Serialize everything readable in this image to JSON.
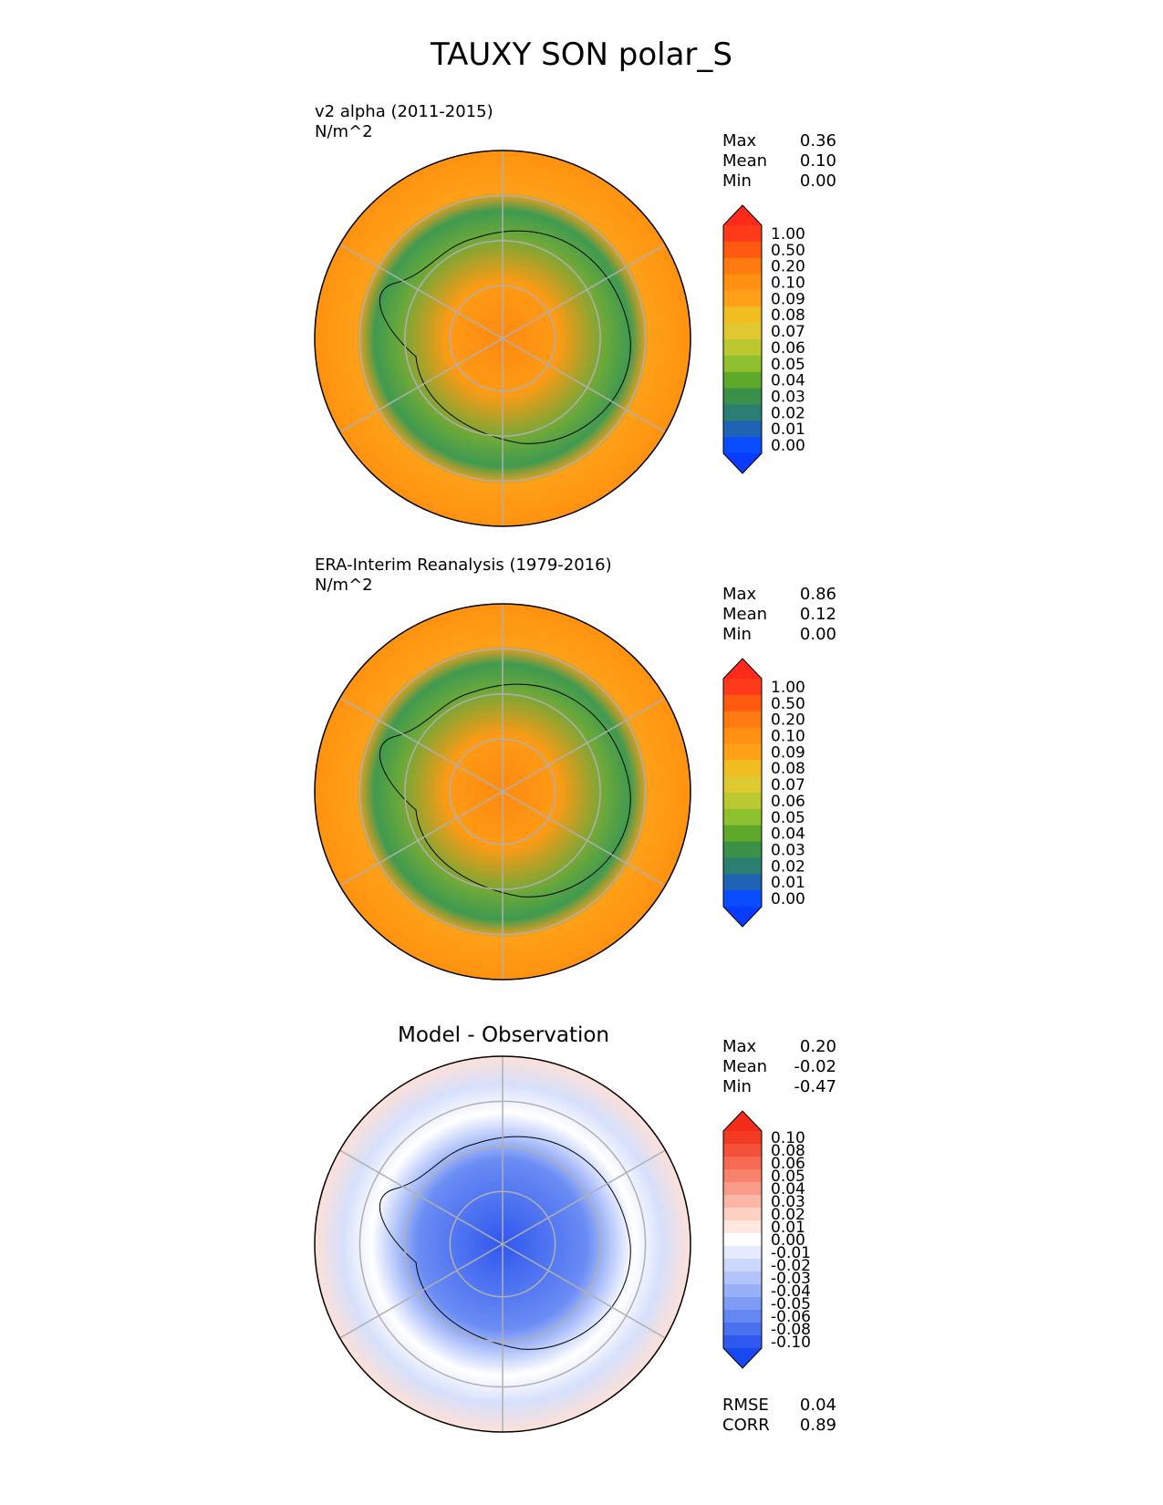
{
  "figure_title": "TAUXY SON polar_S",
  "panels": [
    {
      "title_line1": "v2 alpha (2011-2015)",
      "title_line2": "N/m^2",
      "stats": [
        {
          "label": "Max",
          "value": "0.36"
        },
        {
          "label": "Mean",
          "value": "0.10"
        },
        {
          "label": "Min",
          "value": "0.00"
        }
      ]
    },
    {
      "title_line1": "ERA-Interim Reanalysis (1979-2016)",
      "title_line2": "N/m^2",
      "stats": [
        {
          "label": "Max",
          "value": "0.86"
        },
        {
          "label": "Mean",
          "value": "0.12"
        },
        {
          "label": "Min",
          "value": "0.00"
        }
      ]
    },
    {
      "title_center": "Model - Observation",
      "stats": [
        {
          "label": "Max",
          "value": "0.20"
        },
        {
          "label": "Mean",
          "value": "-0.02"
        },
        {
          "label": "Min",
          "value": "-0.47"
        }
      ],
      "metrics": [
        {
          "label": "RMSE",
          "value": "0.04"
        },
        {
          "label": "CORR",
          "value": "0.89"
        }
      ]
    }
  ],
  "chart_data": [
    {
      "type": "heatmap",
      "projection": "south-polar-stereographic",
      "title": "v2 alpha (2011-2015)",
      "units": "N/m^2",
      "colorbar": {
        "levels": [
          "1.00",
          "0.50",
          "0.20",
          "0.10",
          "0.09",
          "0.08",
          "0.07",
          "0.06",
          "0.05",
          "0.04",
          "0.03",
          "0.02",
          "0.01",
          "0.00"
        ],
        "colors": [
          "#ff3a1a",
          "#ff5a10",
          "#ff7a10",
          "#ff9010",
          "#ffa018",
          "#f0be20",
          "#e0c830",
          "#bcc830",
          "#8ec030",
          "#5ea82a",
          "#3a9048",
          "#2a8070",
          "#1f64b4",
          "#0a4cff"
        ],
        "top_extend_color": "#ff2a1a",
        "bottom_extend_color": "#0a3cff",
        "extend": "both"
      }
    },
    {
      "type": "heatmap",
      "projection": "south-polar-stereographic",
      "title": "ERA-Interim Reanalysis (1979-2016)",
      "units": "N/m^2",
      "colorbar": {
        "levels": [
          "1.00",
          "0.50",
          "0.20",
          "0.10",
          "0.09",
          "0.08",
          "0.07",
          "0.06",
          "0.05",
          "0.04",
          "0.03",
          "0.02",
          "0.01",
          "0.00"
        ],
        "colors": [
          "#ff3a1a",
          "#ff5a10",
          "#ff7a10",
          "#ff9010",
          "#ffa018",
          "#f0be20",
          "#e0c830",
          "#bcc830",
          "#8ec030",
          "#5ea82a",
          "#3a9048",
          "#2a8070",
          "#1f64b4",
          "#0a4cff"
        ],
        "top_extend_color": "#ff2a1a",
        "bottom_extend_color": "#0a3cff",
        "extend": "both"
      }
    },
    {
      "type": "heatmap",
      "projection": "south-polar-stereographic",
      "title": "Model - Observation",
      "colorbar": {
        "levels": [
          "0.10",
          "0.08",
          "0.06",
          "0.05",
          "0.04",
          "0.03",
          "0.02",
          "0.01",
          "0.00",
          "-0.01",
          "-0.02",
          "-0.03",
          "-0.04",
          "-0.05",
          "-0.06",
          "-0.08",
          "-0.10"
        ],
        "colors": [
          "#f23a22",
          "#f4503a",
          "#f66a54",
          "#f8826c",
          "#fa9c88",
          "#fbb6a6",
          "#fdd0c4",
          "#fee8e0",
          "#ffffff",
          "#e6ecfd",
          "#ccd8fb",
          "#b2c4f9",
          "#98b0f7",
          "#7e9cf5",
          "#6488f2",
          "#4a70f0",
          "#2e58ee"
        ],
        "top_extend_color": "#f42a1a",
        "bottom_extend_color": "#1848f0",
        "extend": "both"
      }
    }
  ]
}
